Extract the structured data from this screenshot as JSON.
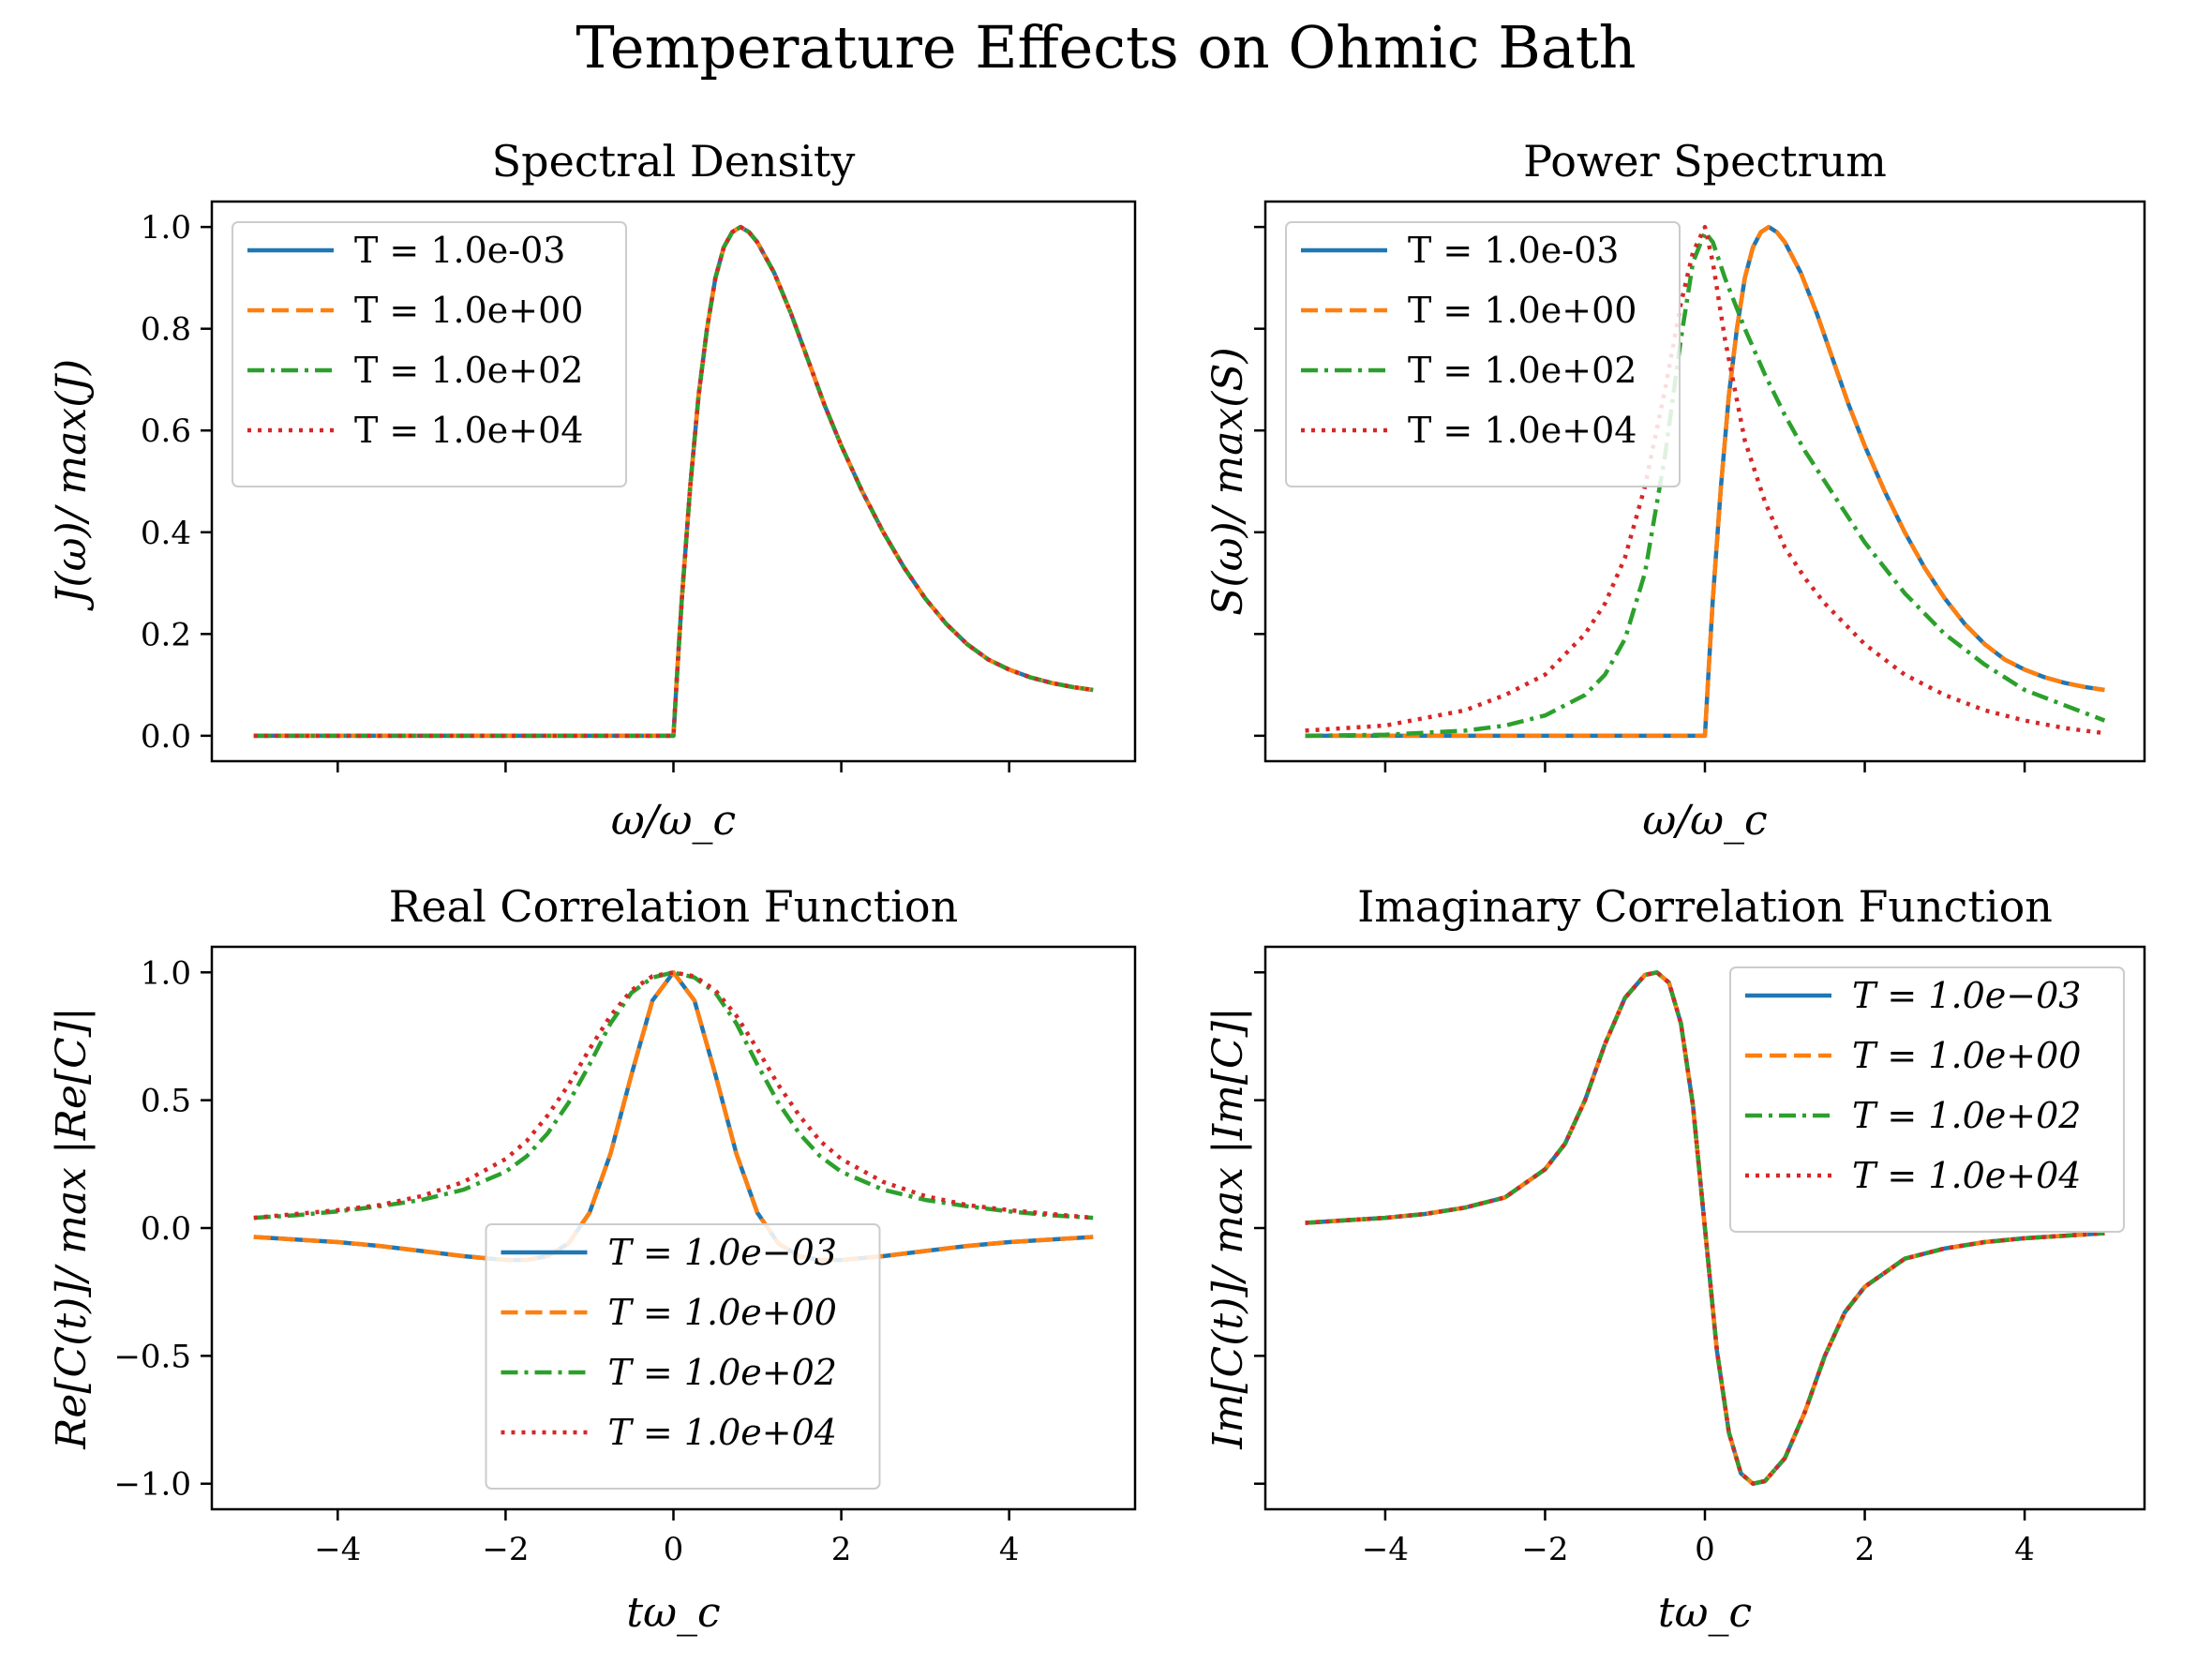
{
  "figure": {
    "title": "Temperature Effects on Ohmic Bath"
  },
  "colors": {
    "blue": "#1f77b4",
    "orange": "#ff7f0e",
    "green": "#2ca02c",
    "red": "#d62728",
    "axes": "#000000",
    "legend_edge": "#cccccc"
  },
  "chart_data": [
    {
      "id": "spectral",
      "type": "line",
      "title": "Spectral Density",
      "xlabel": "ω/ω_c",
      "ylabel": "J(ω)/ max(J)",
      "xlim": [
        -5.5,
        5.5
      ],
      "ylim": [
        -0.05,
        1.05
      ],
      "xticks": [
        -4,
        -2,
        0,
        2,
        4
      ],
      "xtick_labels_visible": false,
      "yticks": [
        0.0,
        0.2,
        0.4,
        0.6,
        0.8,
        1.0
      ],
      "ytick_labels": [
        "0.0",
        "0.2",
        "0.4",
        "0.6",
        "0.8",
        "1.0"
      ],
      "grid": false,
      "legend": {
        "position": "upper-left",
        "italic": false
      },
      "x": [
        -5,
        -4.5,
        -4,
        -3.5,
        -3,
        -2.5,
        -2,
        -1.5,
        -1,
        -0.5,
        0,
        0.05,
        0.1,
        0.2,
        0.3,
        0.4,
        0.5,
        0.6,
        0.7,
        0.8,
        0.9,
        1.0,
        1.2,
        1.4,
        1.6,
        1.8,
        2.0,
        2.25,
        2.5,
        2.75,
        3.0,
        3.25,
        3.5,
        3.75,
        4.0,
        4.25,
        4.5,
        4.75,
        5.0
      ],
      "series": [
        {
          "name": "T = 1.0e-03",
          "color": "blue",
          "dash": "solid",
          "values": [
            0,
            0,
            0,
            0,
            0,
            0,
            0,
            0,
            0,
            0,
            0,
            0.14,
            0.27,
            0.49,
            0.67,
            0.8,
            0.9,
            0.96,
            0.99,
            1.0,
            0.99,
            0.97,
            0.91,
            0.83,
            0.74,
            0.65,
            0.57,
            0.48,
            0.4,
            0.33,
            0.27,
            0.22,
            0.18,
            0.15,
            0.13,
            0.115,
            0.104,
            0.096,
            0.09
          ]
        },
        {
          "name": "T = 1.0e+00",
          "color": "orange",
          "dash": "dashed",
          "values": [
            0,
            0,
            0,
            0,
            0,
            0,
            0,
            0,
            0,
            0,
            0,
            0.14,
            0.27,
            0.49,
            0.67,
            0.8,
            0.9,
            0.96,
            0.99,
            1.0,
            0.99,
            0.97,
            0.91,
            0.83,
            0.74,
            0.65,
            0.57,
            0.48,
            0.4,
            0.33,
            0.27,
            0.22,
            0.18,
            0.15,
            0.13,
            0.115,
            0.104,
            0.096,
            0.09
          ]
        },
        {
          "name": "T = 1.0e+02",
          "color": "green",
          "dash": "dashdot",
          "values": [
            0,
            0,
            0,
            0,
            0,
            0,
            0,
            0,
            0,
            0,
            0,
            0.14,
            0.27,
            0.49,
            0.67,
            0.8,
            0.9,
            0.96,
            0.99,
            1.0,
            0.99,
            0.97,
            0.91,
            0.83,
            0.74,
            0.65,
            0.57,
            0.48,
            0.4,
            0.33,
            0.27,
            0.22,
            0.18,
            0.15,
            0.13,
            0.115,
            0.104,
            0.096,
            0.09
          ]
        },
        {
          "name": "T = 1.0e+04",
          "color": "red",
          "dash": "dotted",
          "values": [
            0,
            0,
            0,
            0,
            0,
            0,
            0,
            0,
            0,
            0,
            0,
            0.14,
            0.27,
            0.49,
            0.67,
            0.8,
            0.9,
            0.96,
            0.99,
            1.0,
            0.99,
            0.97,
            0.91,
            0.83,
            0.74,
            0.65,
            0.57,
            0.48,
            0.4,
            0.33,
            0.27,
            0.22,
            0.18,
            0.15,
            0.13,
            0.115,
            0.104,
            0.096,
            0.09
          ]
        }
      ]
    },
    {
      "id": "power",
      "type": "line",
      "title": "Power Spectrum",
      "xlabel": "ω/ω_c",
      "ylabel": "S(ω)/ max(S)",
      "xlim": [
        -5.5,
        5.5
      ],
      "ylim": [
        -0.05,
        1.05
      ],
      "xticks": [
        -4,
        -2,
        0,
        2,
        4
      ],
      "xtick_labels_visible": false,
      "yticks": [
        0.0,
        0.2,
        0.4,
        0.6,
        0.8,
        1.0
      ],
      "ytick_labels_visible": false,
      "grid": false,
      "legend": {
        "position": "upper-left",
        "italic": false
      },
      "series": [
        {
          "name": "T = 1.0e-03",
          "color": "blue",
          "dash": "solid",
          "x": [
            -5,
            -4,
            -3,
            -2,
            -1,
            -0.5,
            0,
            0.05,
            0.1,
            0.2,
            0.3,
            0.4,
            0.5,
            0.6,
            0.7,
            0.8,
            0.9,
            1.0,
            1.2,
            1.4,
            1.6,
            1.8,
            2.0,
            2.25,
            2.5,
            2.75,
            3.0,
            3.25,
            3.5,
            3.75,
            4.0,
            4.25,
            4.5,
            4.75,
            5.0
          ],
          "values": [
            0,
            0,
            0,
            0,
            0,
            0,
            0,
            0.14,
            0.27,
            0.49,
            0.67,
            0.8,
            0.9,
            0.96,
            0.99,
            1.0,
            0.99,
            0.97,
            0.91,
            0.83,
            0.74,
            0.65,
            0.57,
            0.48,
            0.4,
            0.33,
            0.27,
            0.22,
            0.18,
            0.15,
            0.13,
            0.115,
            0.104,
            0.096,
            0.09
          ]
        },
        {
          "name": "T = 1.0e+00",
          "color": "orange",
          "dash": "dashed",
          "x": [
            -5,
            -4,
            -3,
            -2,
            -1,
            -0.5,
            0,
            0.05,
            0.1,
            0.2,
            0.3,
            0.4,
            0.5,
            0.6,
            0.7,
            0.8,
            0.9,
            1.0,
            1.2,
            1.4,
            1.6,
            1.8,
            2.0,
            2.25,
            2.5,
            2.75,
            3.0,
            3.25,
            3.5,
            3.75,
            4.0,
            4.25,
            4.5,
            4.75,
            5.0
          ],
          "values": [
            0,
            0,
            0,
            0,
            0,
            0,
            0,
            0.14,
            0.27,
            0.49,
            0.67,
            0.8,
            0.9,
            0.96,
            0.99,
            1.0,
            0.99,
            0.97,
            0.91,
            0.83,
            0.74,
            0.65,
            0.57,
            0.48,
            0.4,
            0.33,
            0.27,
            0.22,
            0.18,
            0.15,
            0.13,
            0.115,
            0.104,
            0.096,
            0.09
          ]
        },
        {
          "name": "T = 1.0e+02",
          "color": "green",
          "dash": "dashdot",
          "x": [
            -5,
            -4,
            -3,
            -2.5,
            -2,
            -1.5,
            -1.25,
            -1,
            -0.75,
            -0.5,
            -0.3,
            -0.15,
            0,
            0.1,
            0.25,
            0.5,
            0.75,
            1,
            1.25,
            1.5,
            2,
            2.5,
            3,
            3.5,
            4,
            4.5,
            5
          ],
          "values": [
            0,
            0.002,
            0.01,
            0.02,
            0.04,
            0.08,
            0.12,
            0.19,
            0.32,
            0.55,
            0.78,
            0.93,
            0.99,
            0.97,
            0.9,
            0.8,
            0.71,
            0.63,
            0.56,
            0.5,
            0.38,
            0.28,
            0.2,
            0.14,
            0.09,
            0.06,
            0.03
          ]
        },
        {
          "name": "T = 1.0e+04",
          "color": "red",
          "dash": "dotted",
          "x": [
            -5,
            -4,
            -3,
            -2.5,
            -2,
            -1.5,
            -1.25,
            -1,
            -0.75,
            -0.5,
            -0.3,
            -0.15,
            0,
            0.1,
            0.25,
            0.5,
            0.75,
            1,
            1.25,
            1.5,
            2,
            2.5,
            3,
            3.5,
            4,
            4.5,
            5
          ],
          "values": [
            0.01,
            0.02,
            0.05,
            0.08,
            0.12,
            0.2,
            0.26,
            0.35,
            0.49,
            0.68,
            0.85,
            0.95,
            1.0,
            0.93,
            0.78,
            0.58,
            0.46,
            0.37,
            0.31,
            0.26,
            0.18,
            0.12,
            0.08,
            0.05,
            0.03,
            0.015,
            0.005
          ]
        }
      ]
    },
    {
      "id": "real",
      "type": "line",
      "title": "Real Correlation Function",
      "xlabel": "tω_c",
      "ylabel": "Re[C(t)]/ max |Re[C]|",
      "xlim": [
        -5.5,
        5.5
      ],
      "ylim": [
        -1.1,
        1.1
      ],
      "xticks": [
        -4,
        -2,
        0,
        2,
        4
      ],
      "xtick_labels": [
        "−4",
        "−2",
        "0",
        "2",
        "4"
      ],
      "yticks": [
        -1.0,
        -0.5,
        0.0,
        0.5,
        1.0
      ],
      "ytick_labels": [
        "−1.0",
        "−0.5",
        "0.0",
        "0.5",
        "1.0"
      ],
      "grid": false,
      "legend": {
        "position": "lower-center",
        "italic": true
      },
      "x": [
        -5,
        -4.5,
        -4,
        -3.5,
        -3,
        -2.5,
        -2,
        -1.75,
        -1.5,
        -1.25,
        -1,
        -0.75,
        -0.5,
        -0.25,
        0,
        0.25,
        0.5,
        0.75,
        1,
        1.25,
        1.5,
        1.75,
        2,
        2.5,
        3,
        3.5,
        4,
        4.5,
        5
      ],
      "series": [
        {
          "name": "T = 1.0e−03",
          "color": "blue",
          "dash": "solid",
          "values": [
            -0.035,
            -0.045,
            -0.055,
            -0.07,
            -0.09,
            -0.11,
            -0.125,
            -0.125,
            -0.11,
            -0.06,
            0.06,
            0.29,
            0.6,
            0.89,
            1.0,
            0.89,
            0.6,
            0.29,
            0.06,
            -0.06,
            -0.11,
            -0.125,
            -0.125,
            -0.11,
            -0.09,
            -0.07,
            -0.055,
            -0.045,
            -0.035
          ]
        },
        {
          "name": "T = 1.0e+00",
          "color": "orange",
          "dash": "dashed",
          "values": [
            -0.035,
            -0.045,
            -0.055,
            -0.07,
            -0.09,
            -0.11,
            -0.125,
            -0.125,
            -0.11,
            -0.06,
            0.06,
            0.29,
            0.6,
            0.89,
            1.0,
            0.89,
            0.6,
            0.29,
            0.06,
            -0.06,
            -0.11,
            -0.125,
            -0.125,
            -0.11,
            -0.09,
            -0.07,
            -0.055,
            -0.045,
            -0.035
          ]
        },
        {
          "name": "T = 1.0e+02",
          "color": "green",
          "dash": "dashdot",
          "values": [
            0.04,
            0.05,
            0.065,
            0.085,
            0.11,
            0.15,
            0.22,
            0.28,
            0.37,
            0.49,
            0.64,
            0.8,
            0.92,
            0.98,
            1.0,
            0.98,
            0.92,
            0.8,
            0.64,
            0.49,
            0.37,
            0.28,
            0.22,
            0.15,
            0.11,
            0.085,
            0.065,
            0.05,
            0.04
          ]
        },
        {
          "name": "T = 1.0e+04",
          "color": "red",
          "dash": "dotted",
          "values": [
            0.04,
            0.055,
            0.07,
            0.09,
            0.125,
            0.18,
            0.27,
            0.34,
            0.44,
            0.56,
            0.7,
            0.83,
            0.93,
            0.985,
            1.0,
            0.985,
            0.93,
            0.83,
            0.7,
            0.56,
            0.44,
            0.34,
            0.27,
            0.18,
            0.125,
            0.09,
            0.07,
            0.055,
            0.04
          ]
        }
      ]
    },
    {
      "id": "imag",
      "type": "line",
      "title": "Imaginary Correlation Function",
      "xlabel": "tω_c",
      "ylabel": "Im[C(t)]/ max |Im[C]|",
      "xlim": [
        -5.5,
        5.5
      ],
      "ylim": [
        -1.1,
        1.1
      ],
      "xticks": [
        -4,
        -2,
        0,
        2,
        4
      ],
      "xtick_labels": [
        "−4",
        "−2",
        "0",
        "2",
        "4"
      ],
      "yticks": [
        -1.0,
        -0.5,
        0.0,
        0.5,
        1.0
      ],
      "ytick_labels_visible": false,
      "grid": false,
      "legend": {
        "position": "upper-right",
        "italic": true
      },
      "x": [
        -5,
        -4.5,
        -4,
        -3.5,
        -3,
        -2.5,
        -2,
        -1.75,
        -1.5,
        -1.25,
        -1,
        -0.75,
        -0.6,
        -0.45,
        -0.3,
        -0.15,
        0,
        0.15,
        0.3,
        0.45,
        0.6,
        0.75,
        1,
        1.25,
        1.5,
        1.75,
        2,
        2.5,
        3,
        3.5,
        4,
        4.5,
        5
      ],
      "series": [
        {
          "name": "T = 1.0e−03",
          "color": "blue",
          "dash": "solid",
          "values": [
            0.02,
            0.03,
            0.04,
            0.055,
            0.08,
            0.12,
            0.23,
            0.33,
            0.5,
            0.72,
            0.9,
            0.99,
            1.0,
            0.96,
            0.8,
            0.48,
            0,
            -0.48,
            -0.8,
            -0.96,
            -1.0,
            -0.99,
            -0.9,
            -0.72,
            -0.5,
            -0.33,
            -0.23,
            -0.12,
            -0.08,
            -0.055,
            -0.04,
            -0.03,
            -0.02
          ]
        },
        {
          "name": "T = 1.0e+00",
          "color": "orange",
          "dash": "dashed",
          "values": [
            0.02,
            0.03,
            0.04,
            0.055,
            0.08,
            0.12,
            0.23,
            0.33,
            0.5,
            0.72,
            0.9,
            0.99,
            1.0,
            0.96,
            0.8,
            0.48,
            0,
            -0.48,
            -0.8,
            -0.96,
            -1.0,
            -0.99,
            -0.9,
            -0.72,
            -0.5,
            -0.33,
            -0.23,
            -0.12,
            -0.08,
            -0.055,
            -0.04,
            -0.03,
            -0.02
          ]
        },
        {
          "name": "T = 1.0e+02",
          "color": "green",
          "dash": "dashdot",
          "values": [
            0.02,
            0.03,
            0.04,
            0.055,
            0.08,
            0.12,
            0.23,
            0.33,
            0.5,
            0.72,
            0.9,
            0.99,
            1.0,
            0.96,
            0.8,
            0.48,
            0,
            -0.48,
            -0.8,
            -0.96,
            -1.0,
            -0.99,
            -0.9,
            -0.72,
            -0.5,
            -0.33,
            -0.23,
            -0.12,
            -0.08,
            -0.055,
            -0.04,
            -0.03,
            -0.02
          ]
        },
        {
          "name": "T = 1.0e+04",
          "color": "red",
          "dash": "dotted",
          "values": [
            0.02,
            0.03,
            0.04,
            0.055,
            0.08,
            0.12,
            0.23,
            0.33,
            0.5,
            0.72,
            0.9,
            0.99,
            1.0,
            0.96,
            0.8,
            0.48,
            0,
            -0.48,
            -0.8,
            -0.96,
            -1.0,
            -0.99,
            -0.9,
            -0.72,
            -0.5,
            -0.33,
            -0.23,
            -0.12,
            -0.08,
            -0.055,
            -0.04,
            -0.03,
            -0.02
          ]
        }
      ]
    }
  ]
}
